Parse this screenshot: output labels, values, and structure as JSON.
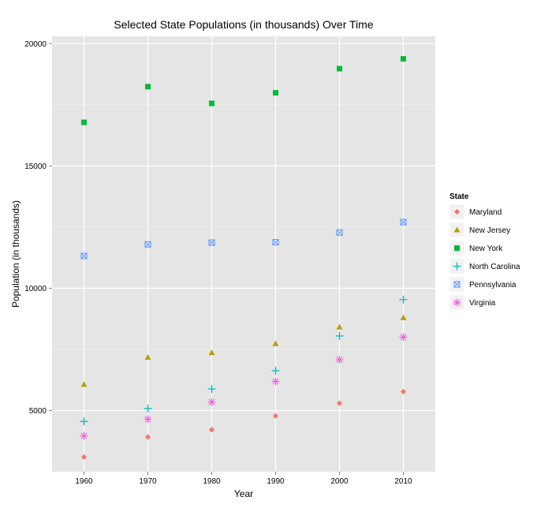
{
  "chart_data": {
    "type": "scatter",
    "title": "Selected State Populations (in thousands) Over Time",
    "xlabel": "Year",
    "ylabel": "Population (in thousands)",
    "x": [
      1960,
      1970,
      1980,
      1990,
      2000,
      2010
    ],
    "x_ticks": [
      "1960",
      "1970",
      "1980",
      "1990",
      "2000",
      "2010"
    ],
    "y_ticks": [
      "5000",
      "10000",
      "15000",
      "20000"
    ],
    "xlim": [
      1955,
      2015
    ],
    "ylim": [
      2500,
      20300
    ],
    "grid": true,
    "legend_title": "State",
    "legend_position": "right",
    "series": [
      {
        "name": "Maryland",
        "shape": "diamond",
        "color": "#F8766D",
        "values": [
          3100,
          3920,
          4217,
          4781,
          5296,
          5774
        ]
      },
      {
        "name": "New Jersey",
        "shape": "triangle",
        "color": "#B79F00",
        "values": [
          6067,
          7171,
          7365,
          7730,
          8414,
          8792
        ]
      },
      {
        "name": "New York",
        "shape": "square",
        "color": "#00BA38",
        "values": [
          16782,
          18241,
          17558,
          17990,
          18976,
          19378
        ]
      },
      {
        "name": "North Carolina",
        "shape": "plus",
        "color": "#00BFC4",
        "values": [
          4556,
          5082,
          5882,
          6629,
          8049,
          9535
        ]
      },
      {
        "name": "Pennsylvania",
        "shape": "boxed-cross",
        "color": "#619CFF",
        "values": [
          11319,
          11794,
          11864,
          11882,
          12281,
          12702
        ]
      },
      {
        "name": "Virginia",
        "shape": "asterisk",
        "color": "#F564E3",
        "values": [
          3967,
          4648,
          5347,
          6187,
          7079,
          8001
        ]
      }
    ]
  }
}
